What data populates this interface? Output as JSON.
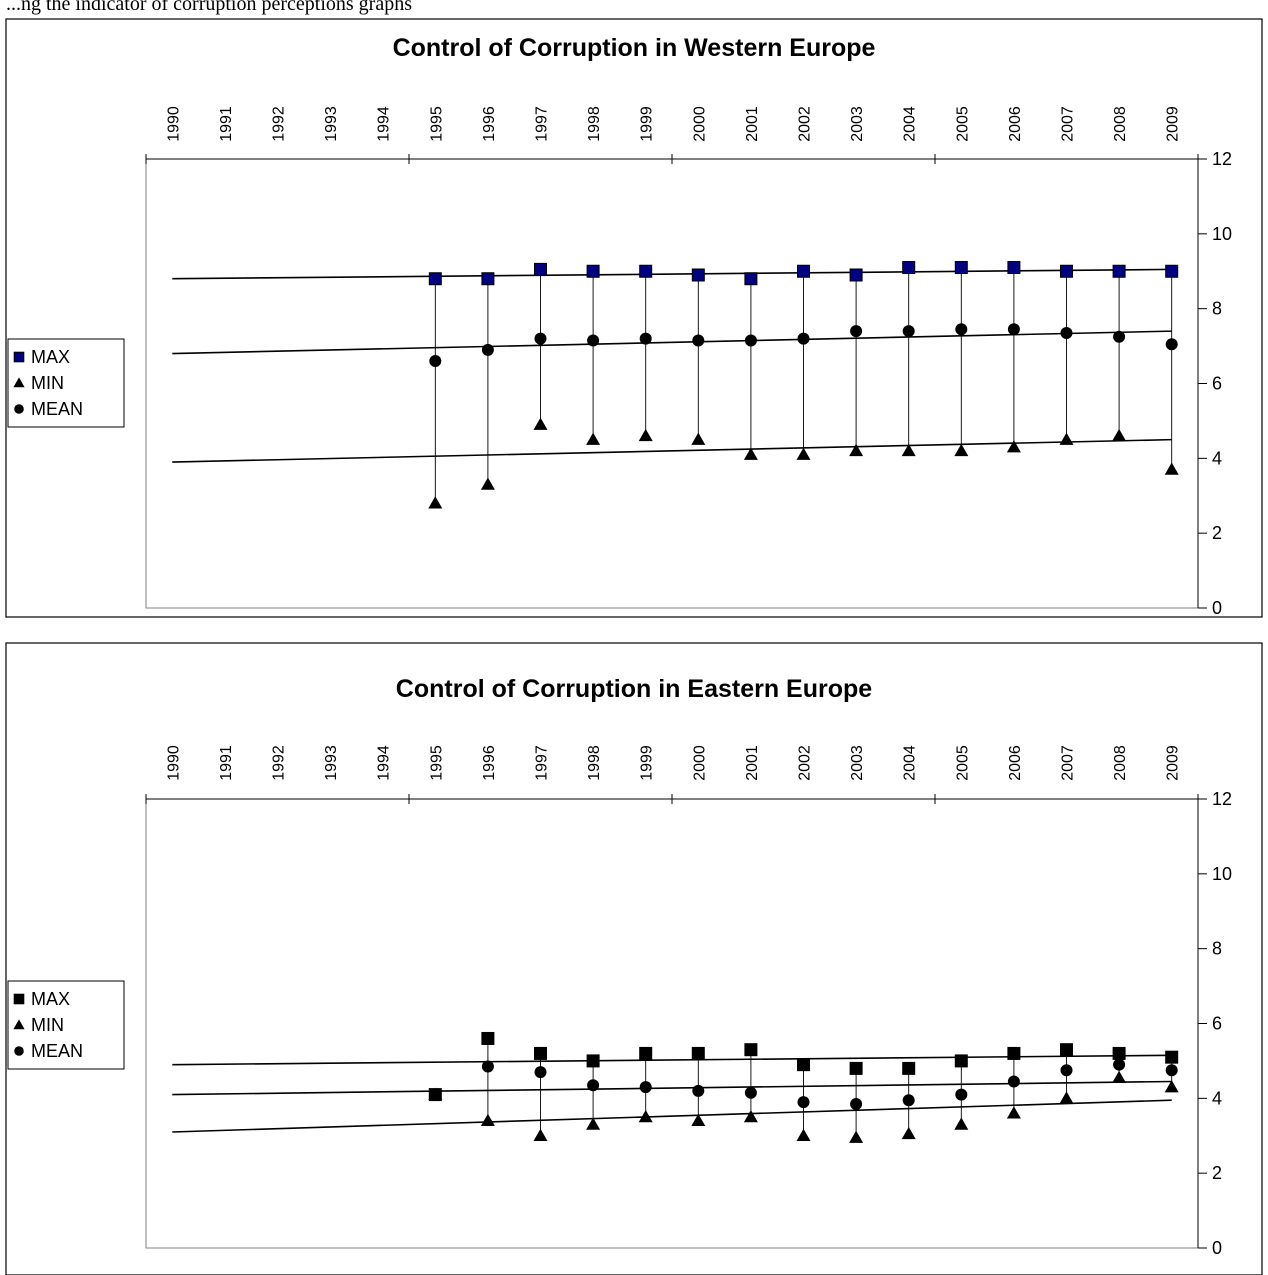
{
  "caption_fragment": "...ng the indicator of corruption perceptions graphs",
  "chart_data": [
    {
      "type": "scatter",
      "title": "Control of Corruption in Western Europe",
      "xlabel": "",
      "ylabel": "",
      "x": [
        "1990",
        "1991",
        "1992",
        "1993",
        "1994",
        "1995",
        "1996",
        "1997",
        "1998",
        "1999",
        "2000",
        "2001",
        "2002",
        "2003",
        "2004",
        "2005",
        "2006",
        "2007",
        "2008",
        "2009"
      ],
      "ylim": [
        0,
        12
      ],
      "yticks": [
        "0",
        "2",
        "4",
        "6",
        "8",
        "10",
        "12"
      ],
      "legend_position": "left",
      "grid": false,
      "series": [
        {
          "name": "MAX",
          "marker": "square",
          "color": "#000080",
          "values": [
            null,
            null,
            null,
            null,
            null,
            8.8,
            8.8,
            9.05,
            9.0,
            9.0,
            8.9,
            8.8,
            9.0,
            8.9,
            9.1,
            9.1,
            9.1,
            9.0,
            9.0,
            9.0
          ]
        },
        {
          "name": "MIN",
          "marker": "triangle",
          "color": "#000000",
          "values": [
            null,
            null,
            null,
            null,
            null,
            2.8,
            3.3,
            4.9,
            4.5,
            4.6,
            4.5,
            4.1,
            4.1,
            4.2,
            4.2,
            4.2,
            4.3,
            4.5,
            4.6,
            3.7
          ]
        },
        {
          "name": "MEAN",
          "marker": "circle",
          "color": "#000000",
          "values": [
            null,
            null,
            null,
            null,
            null,
            6.6,
            6.9,
            7.2,
            7.15,
            7.2,
            7.15,
            7.15,
            7.2,
            7.4,
            7.4,
            7.45,
            7.45,
            7.35,
            7.25,
            7.05
          ]
        }
      ],
      "trendlines": [
        {
          "series": "MAX",
          "from": 8.8,
          "to": 9.05
        },
        {
          "series": "MEAN",
          "from": 6.8,
          "to": 7.4
        },
        {
          "series": "MIN",
          "from": 3.9,
          "to": 4.5
        }
      ]
    },
    {
      "type": "scatter",
      "title": "Control of Corruption in Eastern Europe",
      "xlabel": "",
      "ylabel": "",
      "x": [
        "1990",
        "1991",
        "1992",
        "1993",
        "1994",
        "1995",
        "1996",
        "1997",
        "1998",
        "1999",
        "2000",
        "2001",
        "2002",
        "2003",
        "2004",
        "2005",
        "2006",
        "2007",
        "2008",
        "2009"
      ],
      "ylim": [
        0,
        12
      ],
      "yticks": [
        "0",
        "2",
        "4",
        "6",
        "8",
        "10",
        "12"
      ],
      "legend_position": "left",
      "grid": false,
      "series": [
        {
          "name": "MAX",
          "marker": "square",
          "color": "#000000",
          "values": [
            null,
            null,
            null,
            null,
            null,
            4.1,
            5.6,
            5.2,
            5.0,
            5.2,
            5.2,
            5.3,
            4.9,
            4.8,
            4.8,
            5.0,
            5.2,
            5.3,
            5.2,
            5.1
          ]
        },
        {
          "name": "MIN",
          "marker": "triangle",
          "color": "#000000",
          "values": [
            null,
            null,
            null,
            null,
            null,
            4.1,
            3.4,
            3.0,
            3.3,
            3.5,
            3.4,
            3.5,
            3.0,
            2.95,
            3.05,
            3.3,
            3.6,
            4.0,
            4.55,
            4.3
          ]
        },
        {
          "name": "MEAN",
          "marker": "circle",
          "color": "#000000",
          "values": [
            null,
            null,
            null,
            null,
            null,
            4.1,
            4.85,
            4.7,
            4.35,
            4.3,
            4.2,
            4.15,
            3.9,
            3.85,
            3.95,
            4.1,
            4.45,
            4.75,
            4.9,
            4.75
          ]
        }
      ],
      "trendlines": [
        {
          "series": "MAX",
          "from": 4.9,
          "to": 5.15
        },
        {
          "series": "MEAN",
          "from": 4.1,
          "to": 4.45
        },
        {
          "series": "MIN",
          "from": 3.1,
          "to": 3.95
        }
      ]
    }
  ]
}
